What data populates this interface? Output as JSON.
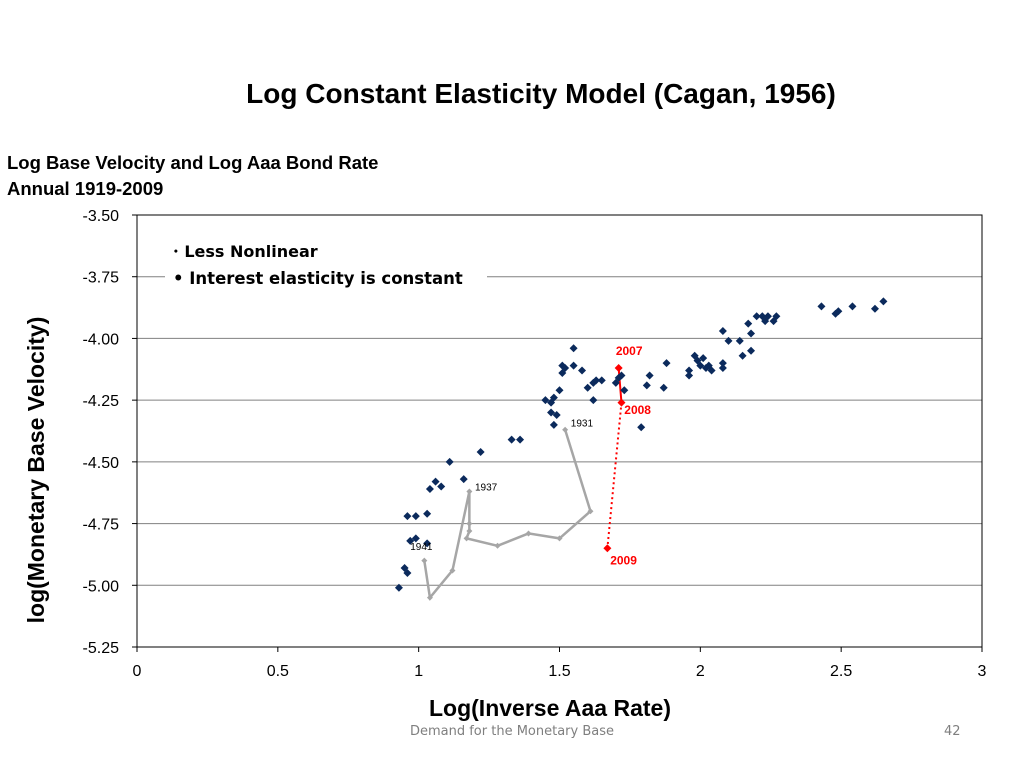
{
  "slide": {
    "title": "Log Constant Elasticity Model (Cagan, 1956)",
    "footer": "Demand for the Monetary Base",
    "page_number": "42",
    "bullets": [
      "Less Nonlinear",
      "Interest elasticity is constant"
    ]
  },
  "chart_data": {
    "type": "scatter",
    "title_lines": [
      "Log Base Velocity and Log Aaa Bond Rate",
      "Annual 1919-2009"
    ],
    "xlabel": "Log(Inverse Aaa Rate)",
    "ylabel": "log(Monetary Base Velocity)",
    "xlim": [
      0,
      3
    ],
    "ylim": [
      -5.25,
      -3.5
    ],
    "x_ticks": [
      0,
      0.5,
      1,
      1.5,
      2,
      2.5,
      3
    ],
    "x_tick_labels": [
      "0",
      "0.5",
      "1",
      "1.5",
      "2",
      "2.5",
      "3"
    ],
    "y_ticks": [
      -5.25,
      -5.0,
      -4.75,
      -4.5,
      -4.25,
      -4.0,
      -3.75,
      -3.5
    ],
    "y_tick_labels": [
      "-5.25",
      "-5.00",
      "-4.75",
      "-4.50",
      "-4.25",
      "-4.00",
      "-3.75",
      "-3.50"
    ],
    "grid": "horizontal",
    "colors": {
      "scatter": "#0b2a5c",
      "path": "#a6a6a6",
      "highlight": "#ff0000"
    },
    "series": [
      {
        "points": [
          [
            0.93,
            -5.01
          ],
          [
            0.95,
            -4.93
          ],
          [
            0.96,
            -4.95
          ],
          [
            0.96,
            -4.72
          ],
          [
            0.99,
            -4.72
          ],
          [
            0.97,
            -4.82
          ],
          [
            0.99,
            -4.81
          ],
          [
            1.03,
            -4.71
          ],
          [
            1.03,
            -4.83
          ],
          [
            1.04,
            -4.61
          ],
          [
            1.06,
            -4.58
          ],
          [
            1.08,
            -4.6
          ],
          [
            1.11,
            -4.5
          ],
          [
            1.16,
            -4.57
          ],
          [
            1.22,
            -4.46
          ],
          [
            1.33,
            -4.41
          ],
          [
            1.36,
            -4.41
          ],
          [
            1.45,
            -4.25
          ],
          [
            1.47,
            -4.26
          ],
          [
            1.47,
            -4.3
          ],
          [
            1.48,
            -4.35
          ],
          [
            1.48,
            -4.24
          ],
          [
            1.49,
            -4.31
          ],
          [
            1.5,
            -4.21
          ],
          [
            1.51,
            -4.14
          ],
          [
            1.51,
            -4.11
          ],
          [
            1.52,
            -4.12
          ],
          [
            1.55,
            -4.11
          ],
          [
            1.55,
            -4.04
          ],
          [
            1.58,
            -4.13
          ],
          [
            1.6,
            -4.2
          ],
          [
            1.62,
            -4.25
          ],
          [
            1.62,
            -4.18
          ],
          [
            1.63,
            -4.17
          ],
          [
            1.65,
            -4.17
          ],
          [
            1.7,
            -4.18
          ],
          [
            1.71,
            -4.16
          ],
          [
            1.72,
            -4.15
          ],
          [
            1.73,
            -4.21
          ],
          [
            1.79,
            -4.36
          ],
          [
            1.81,
            -4.19
          ],
          [
            1.82,
            -4.15
          ],
          [
            1.87,
            -4.2
          ],
          [
            1.88,
            -4.1
          ],
          [
            1.96,
            -4.13
          ],
          [
            1.96,
            -4.15
          ],
          [
            1.98,
            -4.07
          ],
          [
            1.99,
            -4.09
          ],
          [
            2.0,
            -4.11
          ],
          [
            2.01,
            -4.08
          ],
          [
            2.02,
            -4.12
          ],
          [
            2.03,
            -4.11
          ],
          [
            2.04,
            -4.13
          ],
          [
            2.08,
            -4.12
          ],
          [
            2.08,
            -4.1
          ],
          [
            2.08,
            -3.97
          ],
          [
            2.1,
            -4.01
          ],
          [
            2.14,
            -4.01
          ],
          [
            2.15,
            -4.07
          ],
          [
            2.17,
            -3.94
          ],
          [
            2.18,
            -4.05
          ],
          [
            2.18,
            -3.98
          ],
          [
            2.2,
            -3.91
          ],
          [
            2.22,
            -3.91
          ],
          [
            2.23,
            -3.93
          ],
          [
            2.24,
            -3.91
          ],
          [
            2.26,
            -3.93
          ],
          [
            2.27,
            -3.91
          ],
          [
            2.43,
            -3.87
          ],
          [
            2.48,
            -3.9
          ],
          [
            2.49,
            -3.89
          ],
          [
            2.54,
            -3.87
          ],
          [
            2.62,
            -3.88
          ],
          [
            2.65,
            -3.85
          ]
        ]
      },
      {
        "points": [
          [
            1.52,
            -4.37
          ],
          [
            1.61,
            -4.7
          ],
          [
            1.5,
            -4.81
          ],
          [
            1.39,
            -4.79
          ],
          [
            1.28,
            -4.84
          ],
          [
            1.17,
            -4.81
          ],
          [
            1.18,
            -4.78
          ],
          [
            1.18,
            -4.75
          ],
          [
            1.18,
            -4.62
          ],
          [
            1.12,
            -4.94
          ],
          [
            1.04,
            -5.05
          ],
          [
            1.02,
            -4.9
          ]
        ]
      },
      {
        "points": [
          [
            1.71,
            -4.12
          ],
          [
            1.72,
            -4.26
          ],
          [
            1.67,
            -4.85
          ]
        ]
      }
    ],
    "annotations": [
      {
        "x": 1.54,
        "y": -4.34,
        "text": "1931",
        "color": "#000000"
      },
      {
        "x": 1.2,
        "y": -4.6,
        "text": "1937",
        "color": "#000000"
      },
      {
        "x": 0.97,
        "y": -4.84,
        "text": "1941",
        "color": "#000000"
      },
      {
        "x": 1.7,
        "y": -4.05,
        "text": "2007",
        "color": "#ff0000"
      },
      {
        "x": 1.73,
        "y": -4.29,
        "text": "2008",
        "color": "#ff0000"
      },
      {
        "x": 1.68,
        "y": -4.9,
        "text": "2009",
        "color": "#ff0000"
      }
    ]
  }
}
